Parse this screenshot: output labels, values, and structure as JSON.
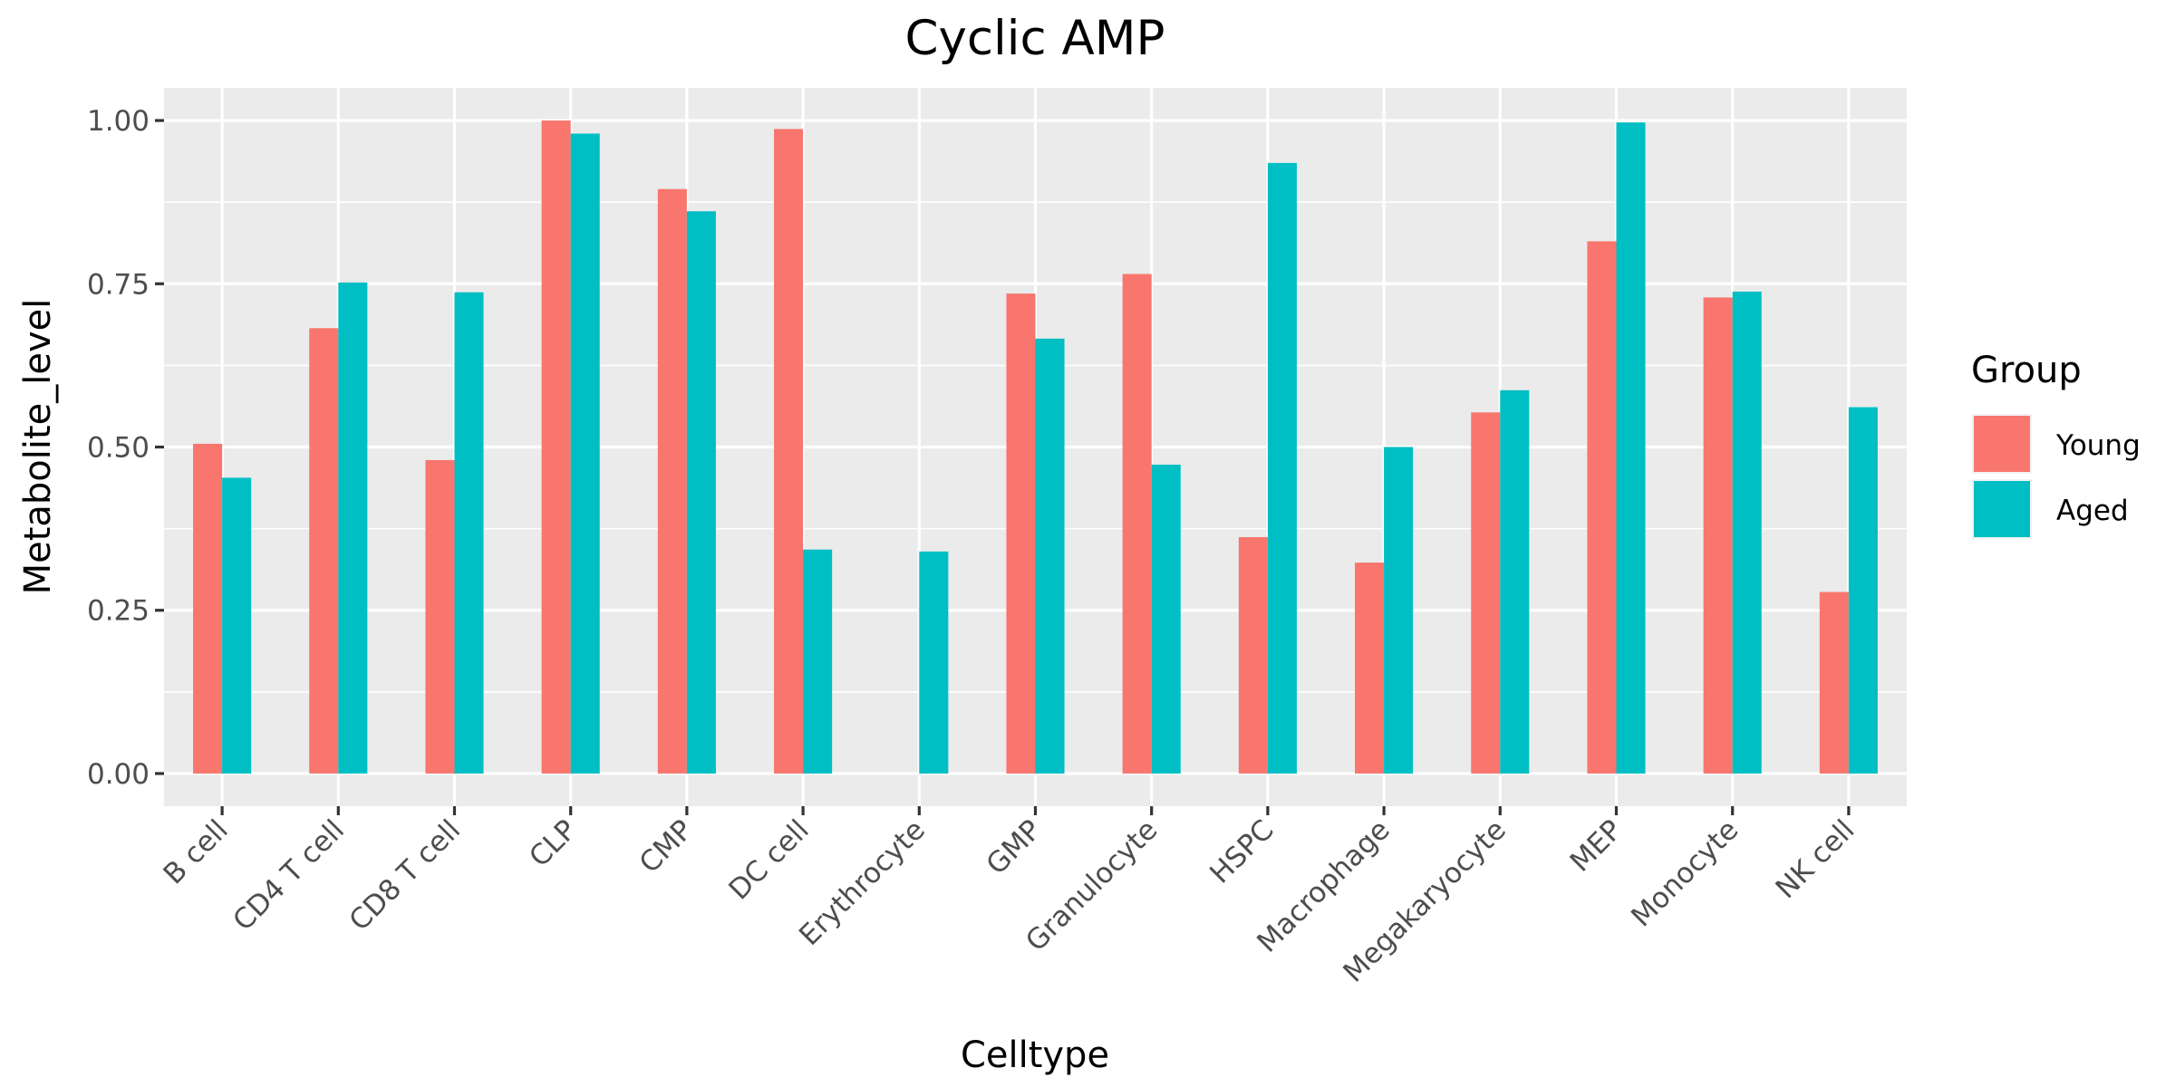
{
  "chart_data": {
    "type": "bar",
    "title": "Cyclic AMP",
    "xlabel": "Celltype",
    "ylabel": "Metabolite_level",
    "ylim": [
      -0.05,
      1.05
    ],
    "yticks": [
      0.0,
      0.25,
      0.5,
      0.75,
      1.0
    ],
    "ytick_labels": [
      "0.00",
      "0.25",
      "0.50",
      "0.75",
      "1.00"
    ],
    "grid": true,
    "legend": {
      "title": "Group",
      "position": "right"
    },
    "categories": [
      "B cell",
      "CD4 T cell",
      "CD8 T cell",
      "CLP",
      "CMP",
      "DC cell",
      "Erythrocyte",
      "GMP",
      "Granulocyte",
      "HSPC",
      "Macrophage",
      "Megakaryocyte",
      "MEP",
      "Monocyte",
      "NK cell"
    ],
    "series": [
      {
        "name": "Young",
        "color": "#F8766D",
        "values": [
          0.505,
          0.682,
          0.48,
          1.0,
          0.895,
          0.987,
          null,
          0.735,
          0.765,
          0.362,
          0.323,
          0.553,
          0.815,
          0.729,
          0.278
        ]
      },
      {
        "name": "Aged",
        "color": "#00BFC4",
        "values": [
          0.453,
          0.752,
          0.737,
          0.98,
          0.861,
          0.343,
          0.34,
          0.666,
          0.473,
          0.935,
          0.5,
          0.587,
          0.997,
          0.738,
          0.561
        ]
      }
    ]
  }
}
